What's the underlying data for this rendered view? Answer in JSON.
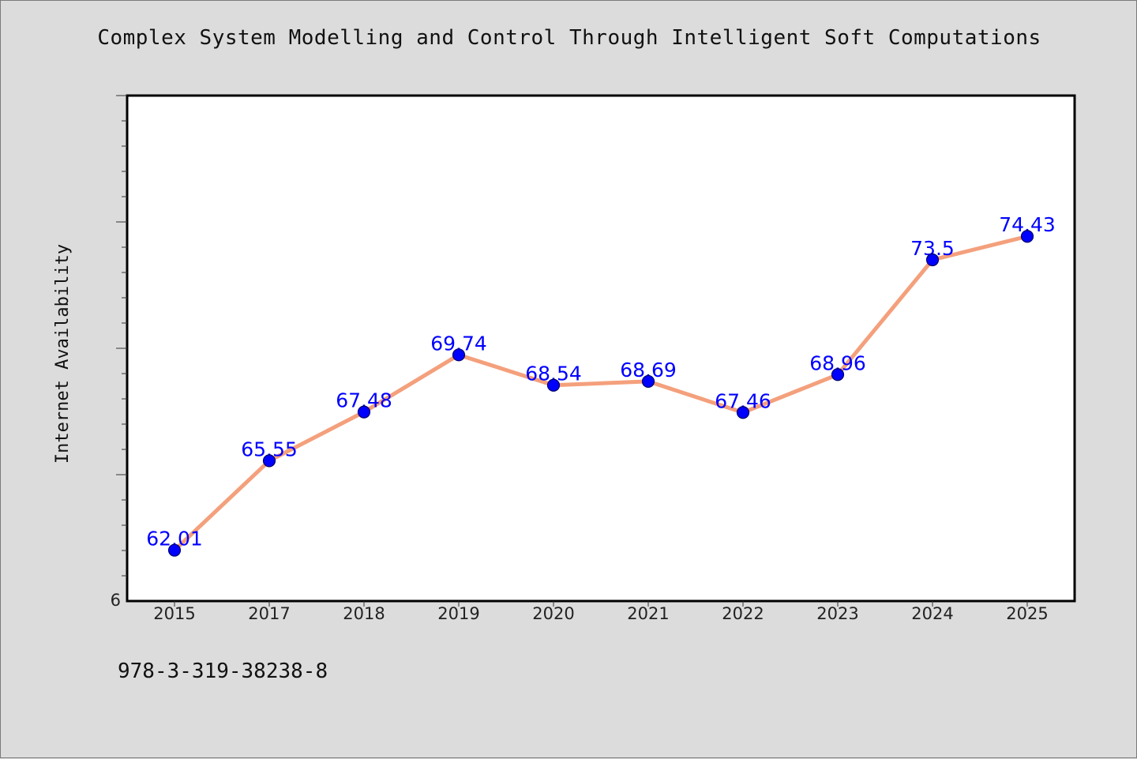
{
  "title": "Complex System Modelling and Control Through Intelligent Soft Computations",
  "footnote": "978-3-319-38238-8",
  "chart_data": {
    "type": "line",
    "title": "Complex System Modelling and Control Through Intelligent Soft Computations",
    "xlabel": "",
    "ylabel": "Internet Availability",
    "categories": [
      "2015",
      "2017",
      "2018",
      "2019",
      "2020",
      "2021",
      "2022",
      "2023",
      "2024",
      "2025"
    ],
    "series": [
      {
        "values": [
          62.01,
          65.55,
          67.48,
          69.74,
          68.54,
          68.69,
          67.46,
          68.96,
          73.5,
          74.43
        ],
        "labels": [
          "62.01",
          "65.55",
          "67.48",
          "69.74",
          "68.54",
          "68.69",
          "67.46",
          "68.96",
          "73.5",
          "74.43"
        ]
      }
    ],
    "y_tick_labels": [
      "6"
    ],
    "ylim": [
      60,
      80
    ],
    "grid": false,
    "legend": "none",
    "colors": {
      "line": "#f4a07c",
      "marker": "#0000ff",
      "data_label": "#0000ff",
      "plot_background": "#ffffff",
      "figure_background": "#dcdcdc"
    }
  }
}
